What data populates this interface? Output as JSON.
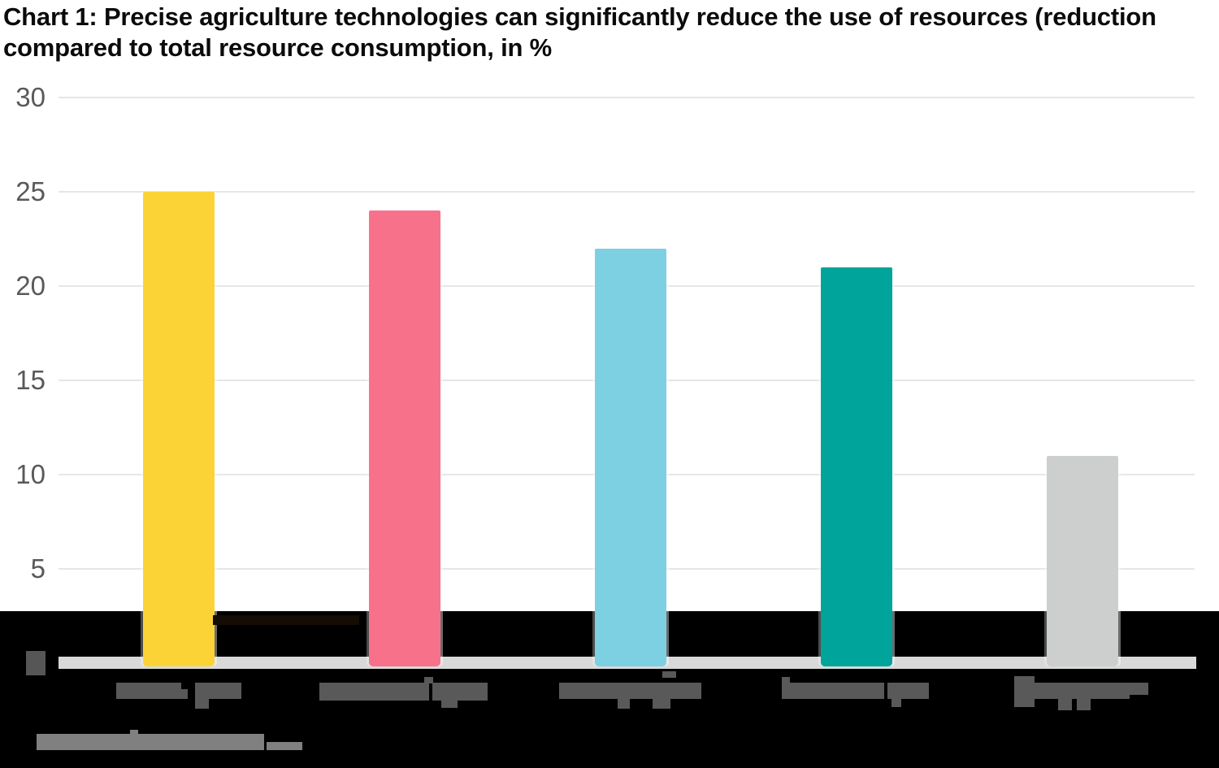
{
  "page": {
    "title": "Chart 1: Precise agriculture technologies can significantly reduce the use of resources (reduction compared to total resource consumption, in %"
  },
  "chart_data": {
    "type": "bar",
    "title": "Chart 1: Precise agriculture technologies can significantly reduce the use of resources (reduction compared to total resource consumption, in %",
    "categories": [
      "[illegible pixelated label]",
      "[illegible pixelated label]",
      "[illegible pixelated label]",
      "[illegible pixelated label]",
      "[illegible pixelated label]"
    ],
    "values": [
      25,
      24,
      22,
      21,
      11
    ],
    "bar_colors": [
      "#FCD337",
      "#F8718A",
      "#7DD0E2",
      "#00A49A",
      "#CDCFCE"
    ],
    "xlabel": "",
    "ylabel": "",
    "ylim": [
      0,
      30
    ],
    "yticks": [
      30,
      25,
      20,
      15,
      10,
      5
    ],
    "legend": "none",
    "grid": "horizontal gridlines only",
    "colors": {
      "title_text": "#0B0B0B",
      "tick_label": "#595959",
      "gridline": "#E6E6E6",
      "baseline_bar": "#D9D9D9",
      "bottom_band": "#000000",
      "background": "#FFFFFF"
    },
    "notes": "x-axis category labels, the y-axis zero label and the bottom source line are rendered as unreadable pixelated gray blocks in the screenshot; a black band covers the bottom of the image from y=752 down",
    "illegible_marks": [
      {
        "name": "y-axis-zero-label-blob",
        "color": "#565656",
        "rects": [
          [
            32,
            801,
            24,
            30
          ]
        ]
      },
      {
        "name": "x-axis-label-blob-1",
        "color": "#595959",
        "rects": [
          [
            143,
            840,
            80,
            20
          ],
          [
            223,
            848,
            8,
            12
          ],
          [
            240,
            840,
            57,
            20
          ],
          [
            240,
            858,
            17,
            14
          ]
        ]
      },
      {
        "name": "x-axis-label-blob-2",
        "color": "#595959",
        "rects": [
          [
            393,
            840,
            135,
            22
          ],
          [
            522,
            833,
            11,
            8
          ],
          [
            532,
            840,
            68,
            22
          ],
          [
            543,
            860,
            20,
            11
          ]
        ]
      },
      {
        "name": "x-axis-label-blob-3",
        "color": "#595959",
        "rects": [
          [
            688,
            840,
            122,
            20
          ],
          [
            810,
            840,
            53,
            20
          ],
          [
            760,
            858,
            15,
            14
          ],
          [
            803,
            858,
            22,
            14
          ],
          [
            815,
            826,
            17,
            8
          ]
        ]
      },
      {
        "name": "x-axis-label-blob-4",
        "color": "#595959",
        "rects": [
          [
            962,
            833,
            10,
            8
          ],
          [
            962,
            840,
            126,
            20
          ],
          [
            1092,
            840,
            51,
            20
          ],
          [
            1097,
            858,
            12,
            12
          ]
        ]
      },
      {
        "name": "x-axis-label-blob-5",
        "color": "#595959",
        "rects": [
          [
            1248,
            832,
            25,
            38
          ],
          [
            1273,
            840,
            117,
            20
          ],
          [
            1390,
            840,
            23,
            15
          ],
          [
            1302,
            860,
            17,
            14
          ],
          [
            1325,
            860,
            17,
            14
          ]
        ]
      },
      {
        "name": "source-note-blob",
        "color": "#808080",
        "rects": [
          [
            45,
            903,
            280,
            20
          ],
          [
            160,
            898,
            10,
            6
          ],
          [
            328,
            913,
            44,
            10
          ]
        ]
      },
      {
        "name": "faint-remnant-blob",
        "color": "#150C03",
        "rects": [
          [
            262,
            757,
            180,
            12
          ]
        ]
      }
    ]
  }
}
